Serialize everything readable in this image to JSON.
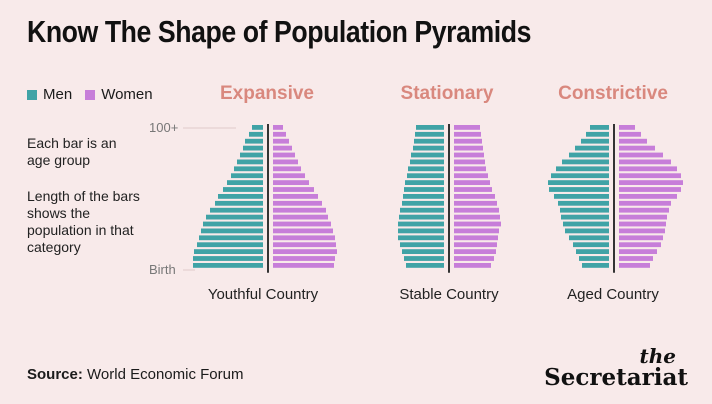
{
  "title": "Know The Shape of Population Pyramids",
  "legend": {
    "men": "Men",
    "women": "Women"
  },
  "notes": {
    "bar": "Each bar is an age group",
    "length": "Length of the bars shows the population in that category"
  },
  "axis": {
    "top": "100+",
    "bottom": "Birth"
  },
  "colors": {
    "men": "#40a3a6",
    "women": "#c77ed9",
    "accent": "#d9887e",
    "divider": "#333333"
  },
  "source": {
    "label": "Source:",
    "text": "World Economic Forum"
  },
  "brand": {
    "the": "the",
    "name": "Secretariat"
  },
  "chart_data": [
    {
      "type": "bar",
      "title": "Expansive",
      "caption": "Youthful Country",
      "age_groups_top_to_bottom": 21,
      "series": [
        {
          "name": "Men",
          "values": [
            11,
            14,
            18,
            20,
            23,
            26,
            29,
            32,
            36,
            40,
            45,
            48,
            53,
            57,
            60,
            62,
            64,
            66,
            69,
            70,
            70
          ]
        },
        {
          "name": "Women",
          "values": [
            10,
            13,
            16,
            19,
            22,
            25,
            28,
            32,
            36,
            41,
            45,
            49,
            53,
            55,
            58,
            60,
            62,
            63,
            64,
            62,
            61
          ]
        }
      ]
    },
    {
      "type": "bar",
      "title": "Stationary",
      "caption": "Stable Country",
      "age_groups_top_to_bottom": 21,
      "series": [
        {
          "name": "Men",
          "values": [
            28,
            29,
            30,
            31,
            33,
            34,
            36,
            37,
            39,
            40,
            41,
            42,
            44,
            45,
            46,
            46,
            46,
            44,
            42,
            40,
            38
          ]
        },
        {
          "name": "Women",
          "values": [
            26,
            27,
            28,
            29,
            30,
            31,
            32,
            34,
            36,
            38,
            41,
            43,
            45,
            46,
            47,
            45,
            44,
            43,
            42,
            40,
            37
          ]
        }
      ]
    },
    {
      "type": "bar",
      "title": "Constrictive",
      "caption": "Aged Country",
      "age_groups_top_to_bottom": 21,
      "series": [
        {
          "name": "Men",
          "values": [
            19,
            23,
            28,
            34,
            40,
            47,
            53,
            58,
            61,
            60,
            55,
            51,
            49,
            48,
            46,
            44,
            40,
            36,
            33,
            30,
            27
          ]
        },
        {
          "name": "Women",
          "values": [
            16,
            22,
            28,
            36,
            44,
            52,
            58,
            62,
            64,
            62,
            58,
            52,
            50,
            48,
            47,
            46,
            44,
            42,
            38,
            34,
            31
          ]
        }
      ]
    }
  ]
}
